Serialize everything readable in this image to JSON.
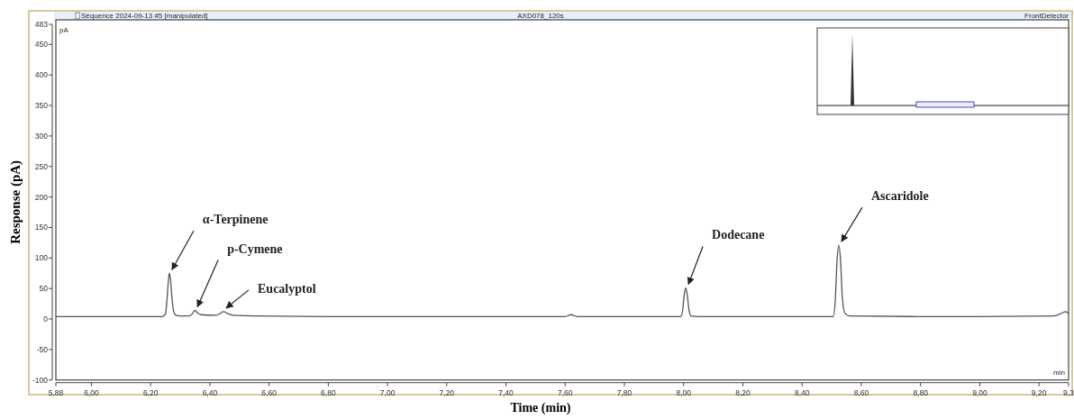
{
  "chart_data": {
    "type": "line",
    "xlabel": "Time (min)",
    "ylabel": "Response (pA)",
    "xlim": [
      5.88,
      9.3
    ],
    "xticks": [
      {
        "value": 5.88,
        "label": "5,88"
      },
      {
        "value": 6.0,
        "label": "6,00"
      },
      {
        "value": 6.2,
        "label": "6,20"
      },
      {
        "value": 6.4,
        "label": "6,40"
      },
      {
        "value": 6.6,
        "label": "6,60"
      },
      {
        "value": 6.8,
        "label": "6,80"
      },
      {
        "value": 7.0,
        "label": "7,00"
      },
      {
        "value": 7.2,
        "label": "7,20"
      },
      {
        "value": 7.4,
        "label": "7,40"
      },
      {
        "value": 7.6,
        "label": "7,60"
      },
      {
        "value": 7.8,
        "label": "7,80"
      },
      {
        "value": 8.0,
        "label": "8,00"
      },
      {
        "value": 8.2,
        "label": "8,20"
      },
      {
        "value": 8.4,
        "label": "8,40"
      },
      {
        "value": 8.6,
        "label": "8,60"
      },
      {
        "value": 8.8,
        "label": "8,80"
      },
      {
        "value": 9.0,
        "label": "9,00"
      },
      {
        "value": 9.2,
        "label": "9,20"
      },
      {
        "value": 9.3,
        "label": "9,3"
      }
    ],
    "ylim": [
      -100,
      483
    ],
    "yticks": [
      -100,
      -50,
      0,
      50,
      100,
      150,
      200,
      250,
      300,
      350,
      400,
      450,
      483
    ],
    "grid": false,
    "line_style": "solid",
    "marker": "none",
    "series": [
      {
        "color": "#555555",
        "x": [
          5.88,
          6.15,
          6.24,
          6.25,
          6.255,
          6.26,
          6.263,
          6.267,
          6.272,
          6.278,
          6.285,
          6.3,
          6.33,
          6.34,
          6.349,
          6.358,
          6.37,
          6.42,
          6.435,
          6.446,
          6.46,
          6.48,
          6.55,
          6.8,
          7.6,
          7.62,
          7.64,
          7.99,
          7.997,
          8.002,
          8.007,
          8.012,
          8.018,
          8.025,
          8.05,
          8.505,
          8.512,
          8.518,
          8.524,
          8.53,
          8.536,
          8.545,
          8.56,
          8.8,
          9.0,
          9.25,
          9.275,
          9.29,
          9.3
        ],
        "values": [
          4,
          4,
          4,
          8,
          30,
          62,
          75,
          65,
          35,
          12,
          6,
          5,
          5,
          8,
          14,
          10,
          7,
          6,
          9,
          12,
          9,
          6,
          5,
          4,
          4,
          7,
          4,
          4,
          15,
          40,
          51,
          40,
          15,
          5,
          4,
          4,
          30,
          95,
          121,
          95,
          35,
          9,
          5,
          4,
          4,
          5,
          9,
          12,
          9
        ]
      }
    ],
    "annotations": [
      {
        "text": "α-Terpinene",
        "x": 6.263,
        "y": 75
      },
      {
        "text": "p-Cymene",
        "x": 6.349,
        "y": 14
      },
      {
        "text": "Eucalyptol",
        "x": 6.446,
        "y": 12
      },
      {
        "text": "Dodecane",
        "x": 8.007,
        "y": 51
      },
      {
        "text": "Ascaridole",
        "x": 8.524,
        "y": 121
      },
      "Séquence 2024-09-13 #5 [manipulated]",
      "AXD078_120s",
      "FrontDetector",
      "pA",
      "min"
    ]
  }
}
